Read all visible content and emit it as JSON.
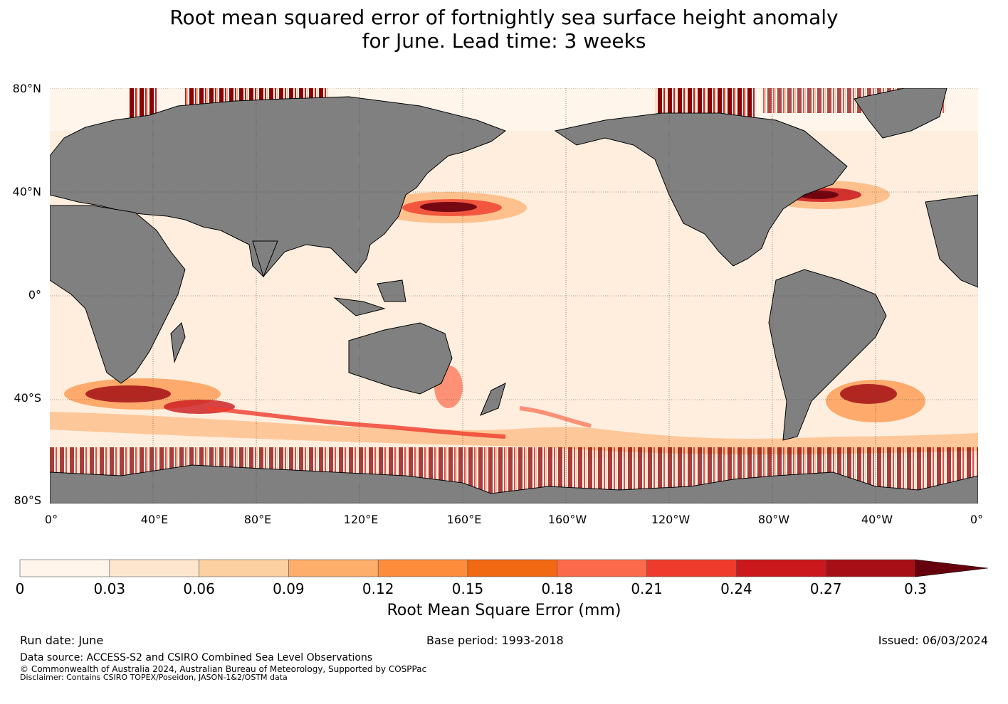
{
  "title": {
    "line1": "Root mean squared error of fortnightly sea surface height anomaly",
    "line2": "for June. Lead time: 3 weeks"
  },
  "map": {
    "lat_labels": [
      "80°N",
      "40°N",
      "0°",
      "40°S",
      "80°S"
    ],
    "lon_labels": [
      "0°",
      "40°E",
      "80°E",
      "120°E",
      "160°E",
      "160°W",
      "120°W",
      "80°W",
      "40°W",
      "0°"
    ],
    "land_color": "#808080",
    "grid": true
  },
  "colorbar": {
    "ticks": [
      "0",
      "0.03",
      "0.06",
      "0.09",
      "0.12",
      "0.15",
      "0.18",
      "0.21",
      "0.24",
      "0.27",
      "0.3"
    ],
    "colors": [
      "#fff5eb",
      "#fee6ce",
      "#fdd0a2",
      "#fdae6b",
      "#fd8d3c",
      "#f16913",
      "#fb6a4a",
      "#ef3b2c",
      "#cb181d",
      "#a50f15",
      "#67000d"
    ],
    "extend": "max",
    "label": "Root Mean Square Error (mm)"
  },
  "footer": {
    "run_date": "Run date: June",
    "base_period": "Base period: 1993-2018",
    "issued": "Issued: 06/03/2024",
    "data_source": "Data source: ACCESS-S2 and CSIRO Combined Sea Level Observations",
    "copyright": "© Commonwealth of Australia 2024, Australian Bureau of Meteorology, Supported by COSPPac",
    "disclaimer": "Disclaimer: Contains CSIRO TOPEX/Poseidon, JASON-1&2/OSTM data"
  }
}
